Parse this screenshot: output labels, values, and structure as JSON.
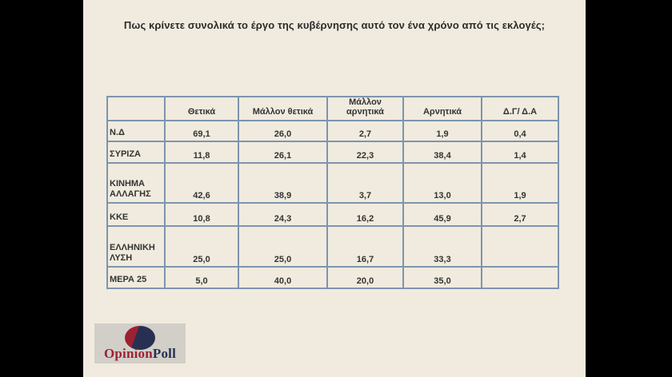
{
  "title": "Πως κρίνετε συνολικά το έργο της κυβέρνησης  αυτό τον ένα χρόνο από τις εκλογές;",
  "table": {
    "columns": [
      "Θετικά",
      "Μάλλον θετικά",
      "Μάλλον αρνητικά",
      "Αρνητικά",
      "Δ.Γ/ Δ.Α"
    ],
    "rows": [
      {
        "party": "Ν.Δ",
        "values": [
          "69,1",
          "26,0",
          "2,7",
          "1,9",
          "0,4"
        ]
      },
      {
        "party": "ΣΥΡΙΖΑ",
        "values": [
          "11,8",
          "26,1",
          "22,3",
          "38,4",
          "1,4"
        ]
      },
      {
        "party": "ΚΙΝΗΜΑ ΑΛΛΑΓΗΣ",
        "values": [
          "42,6",
          "38,9",
          "3,7",
          "13,0",
          "1,9"
        ]
      },
      {
        "party": "ΚΚΕ",
        "values": [
          "10,8",
          "24,3",
          "16,2",
          "45,9",
          "2,7"
        ]
      },
      {
        "party": "ΕΛΛΗΝΙΚΗ ΛΥΣΗ",
        "values": [
          "25,0",
          "25,0",
          "16,7",
          "33,3",
          ""
        ]
      },
      {
        "party": "ΜΕΡΑ 25",
        "values": [
          "5,0",
          "40,0",
          "20,0",
          "35,0",
          ""
        ]
      }
    ]
  },
  "chart_data": {
    "type": "table",
    "title": "Πως κρίνετε συνολικά το έργο της κυβέρνησης αυτό τον ένα χρόνο από τις εκλογές;",
    "categories": [
      "Θετικά",
      "Μάλλον θετικά",
      "Μάλλον αρνητικά",
      "Αρνητικά",
      "Δ.Γ/ Δ.Α"
    ],
    "series": [
      {
        "name": "Ν.Δ",
        "values": [
          69.1,
          26.0,
          2.7,
          1.9,
          0.4
        ]
      },
      {
        "name": "ΣΥΡΙΖΑ",
        "values": [
          11.8,
          26.1,
          22.3,
          38.4,
          1.4
        ]
      },
      {
        "name": "ΚΙΝΗΜΑ ΑΛΛΑΓΗΣ",
        "values": [
          42.6,
          38.9,
          3.7,
          13.0,
          1.9
        ]
      },
      {
        "name": "ΚΚΕ",
        "values": [
          10.8,
          24.3,
          16.2,
          45.9,
          2.7
        ]
      },
      {
        "name": "ΕΛΛΗΝΙΚΗ ΛΥΣΗ",
        "values": [
          25.0,
          25.0,
          16.7,
          33.3,
          null
        ]
      },
      {
        "name": "ΜΕΡΑ 25",
        "values": [
          5.0,
          40.0,
          20.0,
          35.0,
          null
        ]
      }
    ],
    "value_format": "percent, comma decimal separator"
  },
  "logo": {
    "part1": "Opinion",
    "part2": "Poll"
  },
  "colors": {
    "slide_background": "#f0ebde",
    "pillarbox": "#000000",
    "table_border": "#7d94ae",
    "text": "#2b2b2b",
    "logo_red": "#9e2132",
    "logo_navy": "#273052",
    "logo_box": "#d2cfc9"
  }
}
